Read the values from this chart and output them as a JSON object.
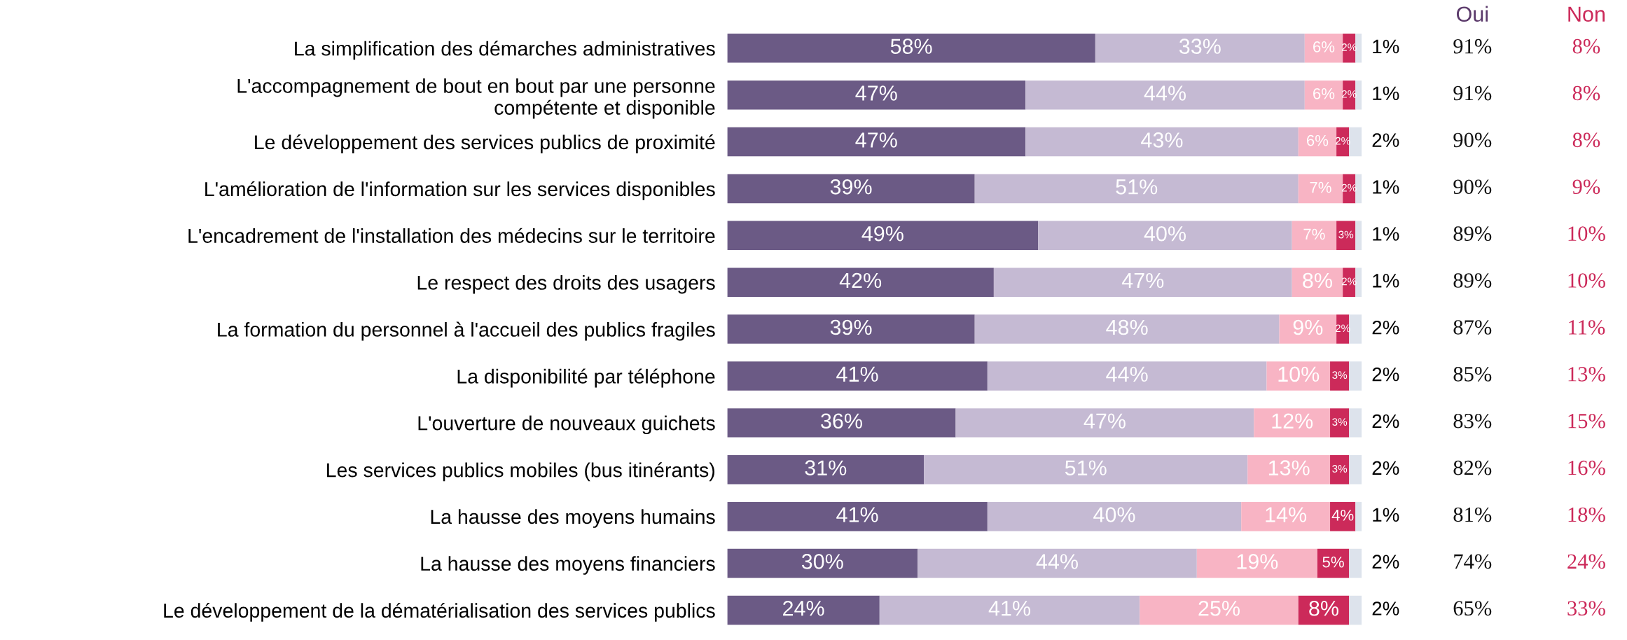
{
  "chart_data": {
    "type": "bar",
    "orientation": "horizontal",
    "stacked": true,
    "tick_labels": "y",
    "grid": false,
    "legend": false,
    "categories": [
      "La simplification des démarches administratives",
      "L'accompagnement de bout en bout par une personne\ncompétente et disponible",
      "Le développement des services publics de proximité",
      "L'amélioration de l'information sur les services disponibles",
      "L'encadrement de l'installation des médecins sur le territoire",
      "Le respect des droits des usagers",
      "La formation du personnel à l'accueil des publics fragiles",
      "La disponibilité par téléphone",
      "L'ouverture de nouveaux guichets",
      "Les services publics mobiles (bus itinérants)",
      "La hausse des moyens humains",
      "La hausse des moyens financiers",
      "Le développement de la dématérialisation des services publics"
    ],
    "series": [
      {
        "color": "#6b5a85",
        "values": [
          58,
          47,
          47,
          39,
          49,
          42,
          39,
          41,
          36,
          31,
          41,
          30,
          24
        ],
        "value_labels": [
          "58%",
          "47%",
          "47%",
          "39%",
          "49%",
          "42%",
          "39%",
          "41%",
          "36%",
          "31%",
          "41%",
          "30%",
          "24%"
        ]
      },
      {
        "color": "#c5bad3",
        "values": [
          33,
          44,
          43,
          51,
          40,
          47,
          48,
          44,
          47,
          51,
          40,
          44,
          41
        ],
        "value_labels": [
          "33%",
          "44%",
          "43%",
          "51%",
          "40%",
          "47%",
          "48%",
          "44%",
          "47%",
          "51%",
          "40%",
          "44%",
          "41%"
        ]
      },
      {
        "color": "#f8b4c4",
        "values": [
          6,
          6,
          6,
          7,
          7,
          8,
          9,
          10,
          12,
          13,
          14,
          19,
          25
        ],
        "value_labels": [
          "6%",
          "6%",
          "6%",
          "7%",
          "7%",
          "8%",
          "9%",
          "10%",
          "12%",
          "13%",
          "14%",
          "19%",
          "25%"
        ]
      },
      {
        "color": "#cc2a5a",
        "values": [
          2,
          2,
          2,
          2,
          3,
          2,
          2,
          3,
          3,
          3,
          4,
          5,
          8
        ],
        "value_labels": [
          "2%",
          "2%",
          "2%",
          "2%",
          "3%",
          "2%",
          "2%",
          "3%",
          "3%",
          "3%",
          "4%",
          "5%",
          "8%"
        ]
      },
      {
        "color": "#dde3ec",
        "values": [
          1,
          1,
          2,
          1,
          1,
          1,
          2,
          2,
          2,
          2,
          1,
          2,
          2
        ],
        "value_labels": [
          "1%",
          "1%",
          "2%",
          "1%",
          "1%",
          "1%",
          "2%",
          "2%",
          "2%",
          "2%",
          "1%",
          "2%",
          "2%"
        ]
      }
    ],
    "annotations": [
      "Oui",
      "Non",
      "91%",
      "8%",
      "91%",
      "8%",
      "90%",
      "8%",
      "90%",
      "9%",
      "89%",
      "10%",
      "89%",
      "10%",
      "87%",
      "11%",
      "85%",
      "13%",
      "83%",
      "15%",
      "82%",
      "16%",
      "81%",
      "18%",
      "74%",
      "24%",
      "65%",
      "33%"
    ]
  }
}
